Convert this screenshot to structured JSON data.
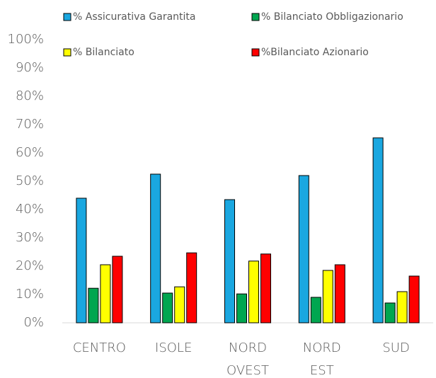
{
  "chart_data": {
    "type": "bar",
    "categories": [
      "CENTRO",
      "ISOLE",
      "NORD OVEST",
      "NORD EST",
      "SUD"
    ],
    "series": [
      {
        "name": "% Assicurativa Garantita",
        "color": "#1aa7e0",
        "values": [
          44,
          52.5,
          43.5,
          52,
          65.3
        ]
      },
      {
        "name": "% Bilanciato Obbligazionario",
        "color": "#00a650",
        "values": [
          12.2,
          10.5,
          10.2,
          9,
          7
        ]
      },
      {
        "name": "% Bilanciato",
        "color": "#ffff00",
        "values": [
          20.5,
          12.7,
          21.8,
          18.5,
          11
        ]
      },
      {
        "name": "%Bilanciato Azionario",
        "color": "#ff0000",
        "values": [
          23.5,
          24.7,
          24.3,
          20.5,
          16.5
        ]
      }
    ],
    "ylim": [
      0,
      100
    ],
    "yticks": [
      {
        "value": 0,
        "label": "0%"
      },
      {
        "value": 10,
        "label": "10%"
      },
      {
        "value": 20,
        "label": "20%"
      },
      {
        "value": 30,
        "label": "30%"
      },
      {
        "value": 40,
        "label": "40%"
      },
      {
        "value": 50,
        "label": "50%"
      },
      {
        "value": 60,
        "label": "60%"
      },
      {
        "value": 70,
        "label": "70%"
      },
      {
        "value": 80,
        "label": "80%"
      },
      {
        "value": 90,
        "label": "90%"
      },
      {
        "value": 100,
        "label": "100%"
      }
    ],
    "grid": false,
    "legend": "top"
  }
}
